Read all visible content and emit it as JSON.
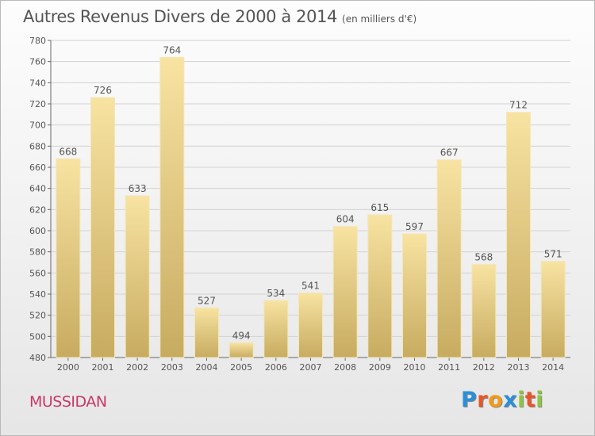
{
  "header": {
    "title": "Autres Revenus Divers de 2000 à 2014",
    "subtitle": "(en milliers d'€)"
  },
  "footer": {
    "commune": "MUSSIDAN",
    "brand_letters": [
      "P",
      "r",
      "o",
      "x",
      "i",
      "t",
      "i"
    ],
    "brand_colors": [
      "#2a8fd8",
      "#e8552b",
      "#f29a1a",
      "#2a8fd8",
      "#8cc63e",
      "#e8552b",
      "#8cc63e"
    ]
  },
  "chart_data": {
    "type": "bar",
    "categories": [
      "2000",
      "2001",
      "2002",
      "2003",
      "2004",
      "2005",
      "2006",
      "2007",
      "2008",
      "2009",
      "2010",
      "2011",
      "2012",
      "2013",
      "2014"
    ],
    "values": [
      668,
      726,
      633,
      764,
      527,
      494,
      534,
      541,
      604,
      615,
      597,
      667,
      568,
      712,
      571
    ],
    "ylim": [
      480,
      780
    ],
    "yticks": [
      480,
      500,
      520,
      540,
      560,
      580,
      600,
      620,
      640,
      660,
      680,
      700,
      720,
      740,
      760,
      780
    ],
    "grid": true,
    "bar_color_top": "#f8e3a2",
    "bar_color_bottom": "#c7ab60",
    "data_labels": true
  }
}
